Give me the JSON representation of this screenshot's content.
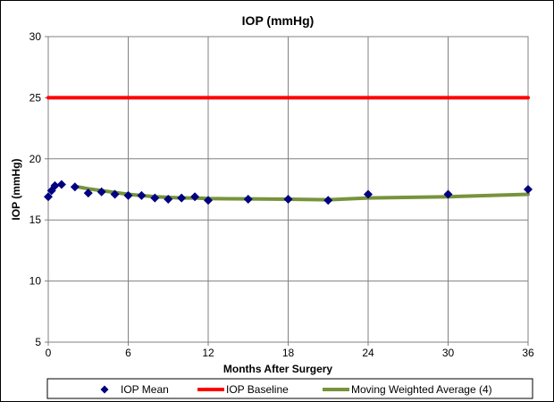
{
  "chart_data": {
    "type": "line",
    "title": "IOP (mmHg)",
    "xlabel": "Months After Surgery",
    "ylabel": "IOP (mmHg)",
    "xlim": [
      0,
      36
    ],
    "ylim": [
      5,
      30
    ],
    "xticks": [
      0,
      6,
      12,
      18,
      24,
      30,
      36
    ],
    "yticks": [
      5,
      10,
      15,
      20,
      25,
      30
    ],
    "grid": true,
    "legend_position": "bottom",
    "series": [
      {
        "name": "IOP Mean",
        "kind": "scatter",
        "marker": "diamond",
        "color": "#000080",
        "x": [
          0,
          0.25,
          0.5,
          1,
          2,
          3,
          4,
          5,
          6,
          7,
          8,
          9,
          10,
          11,
          12,
          15,
          18,
          21,
          24,
          30,
          36
        ],
        "y": [
          16.9,
          17.4,
          17.8,
          17.9,
          17.7,
          17.2,
          17.3,
          17.1,
          17.0,
          17.0,
          16.8,
          16.7,
          16.8,
          16.9,
          16.6,
          16.7,
          16.7,
          16.6,
          17.1,
          17.1,
          17.5
        ]
      },
      {
        "name": "IOP Baseline",
        "kind": "line",
        "color": "#ff0000",
        "x": [
          0,
          36
        ],
        "y": [
          25,
          25
        ]
      },
      {
        "name": "Moving Weighted Average (4)",
        "kind": "line",
        "color": "#77933c",
        "x": [
          2,
          3,
          4,
          5,
          6,
          7,
          8,
          9,
          10,
          11,
          12,
          15,
          18,
          21,
          24,
          30,
          36
        ],
        "y": [
          17.75,
          17.55,
          17.4,
          17.25,
          17.1,
          17.0,
          16.9,
          16.85,
          16.8,
          16.8,
          16.75,
          16.72,
          16.7,
          16.65,
          16.8,
          16.9,
          17.1
        ]
      }
    ]
  }
}
